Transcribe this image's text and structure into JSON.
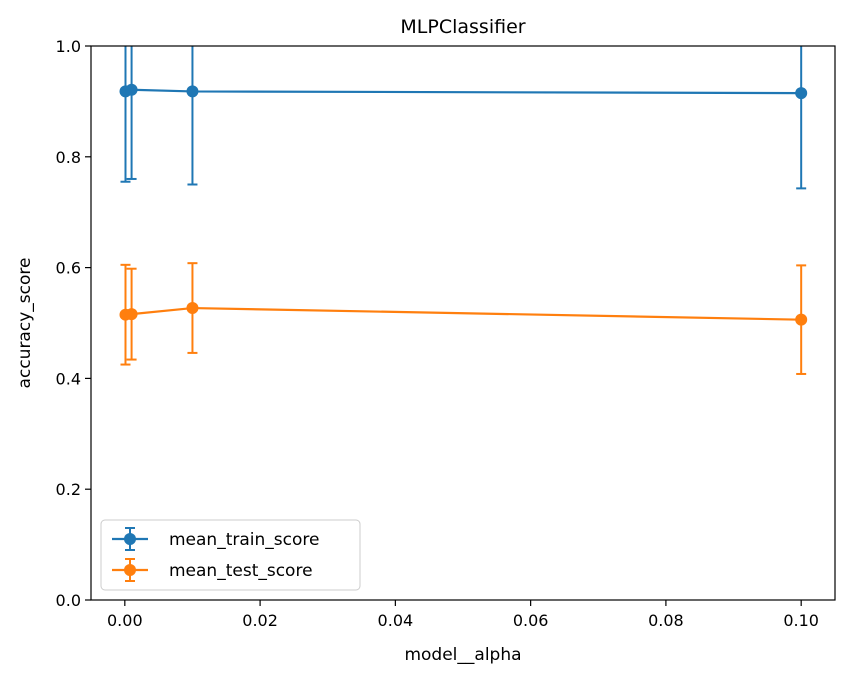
{
  "chart_data": {
    "type": "line",
    "title": "MLPClassifier",
    "xlabel": "model__alpha",
    "ylabel": "accuracy_score",
    "xlim": [
      -0.005,
      0.105
    ],
    "ylim": [
      0.0,
      1.0
    ],
    "xticks": [
      0.0,
      0.02,
      0.04,
      0.06,
      0.08,
      0.1
    ],
    "xtick_labels": [
      "0.00",
      "0.02",
      "0.04",
      "0.06",
      "0.08",
      "0.10"
    ],
    "yticks": [
      0.0,
      0.2,
      0.4,
      0.6,
      0.8,
      1.0
    ],
    "ytick_labels": [
      "0.0",
      "0.2",
      "0.4",
      "0.6",
      "0.8",
      "1.0"
    ],
    "grid": false,
    "legend_position": "lower-left",
    "x": [
      0.0001,
      0.001,
      0.01,
      0.1
    ],
    "series": [
      {
        "name": "mean_train_score",
        "color": "#1f77b4",
        "values": [
          0.918,
          0.921,
          0.918,
          0.915
        ],
        "errors": [
          0.163,
          0.161,
          0.168,
          0.172
        ]
      },
      {
        "name": "mean_test_score",
        "color": "#ff7f0e",
        "values": [
          0.515,
          0.516,
          0.527,
          0.506
        ],
        "errors": [
          0.09,
          0.082,
          0.081,
          0.098
        ]
      }
    ]
  }
}
